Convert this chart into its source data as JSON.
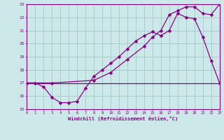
{
  "xlabel": "Windchill (Refroidissement éolien,°C)",
  "bg_color": "#cce8e8",
  "grid_color": "#aacccc",
  "line_color": "#880088",
  "xlim": [
    0,
    23
  ],
  "ylim": [
    15,
    23
  ],
  "xticks": [
    0,
    1,
    2,
    3,
    4,
    5,
    6,
    7,
    8,
    9,
    10,
    11,
    12,
    13,
    14,
    15,
    16,
    17,
    18,
    19,
    20,
    21,
    22,
    23
  ],
  "yticks": [
    15,
    16,
    17,
    18,
    19,
    20,
    21,
    22,
    23
  ],
  "line1_x": [
    0,
    1,
    2,
    3,
    4,
    5,
    6,
    7,
    8,
    9,
    10,
    11,
    12,
    13,
    14,
    15,
    16,
    17,
    18,
    19,
    20,
    21,
    22,
    23
  ],
  "line1_y": [
    17.0,
    17.0,
    16.7,
    15.9,
    15.5,
    15.5,
    15.6,
    16.6,
    17.5,
    18.0,
    18.5,
    19.0,
    19.6,
    20.2,
    20.6,
    20.9,
    20.6,
    21.0,
    22.3,
    22.0,
    21.9,
    20.5,
    18.7,
    17.0
  ],
  "line2_x": [
    0,
    23
  ],
  "line2_y": [
    17.0,
    17.0
  ],
  "line3_x": [
    0,
    3,
    8,
    10,
    12,
    14,
    15,
    16,
    17,
    18,
    19,
    20,
    21,
    22,
    23
  ],
  "line3_y": [
    17.0,
    17.0,
    17.2,
    17.8,
    18.8,
    19.8,
    20.5,
    21.0,
    22.2,
    22.5,
    22.8,
    22.8,
    22.3,
    22.2,
    23.0
  ]
}
